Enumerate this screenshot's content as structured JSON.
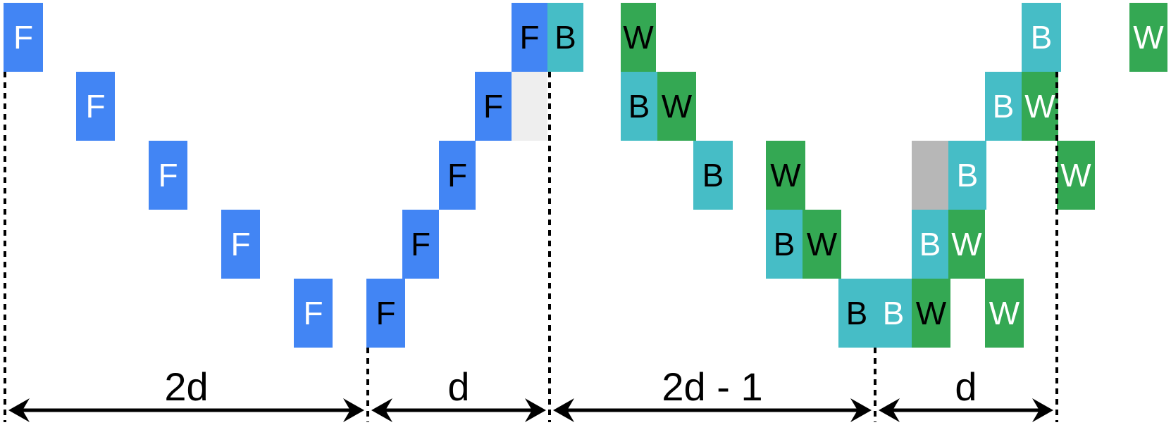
{
  "colors": {
    "forward": "#4285f4",
    "backward": "#46bdc6",
    "weight": "#34a853",
    "idle_light": "#eeeeee",
    "idle_dark": "#b7b7b7",
    "text_white": "#ffffff",
    "text_black": "#000000"
  },
  "cells": [
    {
      "name": "forward-block",
      "label": "F",
      "kind": "forward",
      "text": "white"
    },
    {
      "name": "forward-block",
      "label": "F",
      "kind": "forward",
      "text": "white"
    },
    {
      "name": "forward-block",
      "label": "F",
      "kind": "forward",
      "text": "white"
    },
    {
      "name": "forward-block",
      "label": "F",
      "kind": "forward",
      "text": "white"
    },
    {
      "name": "forward-block",
      "label": "F",
      "kind": "forward",
      "text": "white"
    },
    {
      "name": "forward-block",
      "label": "F",
      "kind": "forward",
      "text": "black"
    },
    {
      "name": "forward-block",
      "label": "F",
      "kind": "forward",
      "text": "black"
    },
    {
      "name": "forward-block",
      "label": "F",
      "kind": "forward",
      "text": "black"
    },
    {
      "name": "forward-block",
      "label": "F",
      "kind": "forward",
      "text": "black"
    },
    {
      "name": "forward-block",
      "label": "F",
      "kind": "forward",
      "text": "black"
    },
    {
      "name": "backward-block",
      "label": "B",
      "kind": "backward",
      "text": "black"
    },
    {
      "name": "idle-block",
      "label": "",
      "kind": "idle_light",
      "text": "black"
    },
    {
      "name": "weight-block",
      "label": "W",
      "kind": "weight",
      "text": "black"
    },
    {
      "name": "backward-block",
      "label": "B",
      "kind": "backward",
      "text": "black"
    },
    {
      "name": "weight-block",
      "label": "W",
      "kind": "weight",
      "text": "black"
    },
    {
      "name": "backward-block",
      "label": "B",
      "kind": "backward",
      "text": "black"
    },
    {
      "name": "weight-block",
      "label": "W",
      "kind": "weight",
      "text": "black"
    },
    {
      "name": "backward-block",
      "label": "B",
      "kind": "backward",
      "text": "black"
    },
    {
      "name": "weight-block",
      "label": "W",
      "kind": "weight",
      "text": "black"
    },
    {
      "name": "backward-block",
      "label": "B",
      "kind": "backward",
      "text": "black"
    },
    {
      "name": "backward-block",
      "label": "B",
      "kind": "backward",
      "text": "white"
    },
    {
      "name": "weight-block",
      "label": "W",
      "kind": "weight",
      "text": "black"
    },
    {
      "name": "backward-block",
      "label": "B",
      "kind": "backward",
      "text": "white"
    },
    {
      "name": "weight-block",
      "label": "W",
      "kind": "weight",
      "text": "white"
    },
    {
      "name": "weight-block",
      "label": "W",
      "kind": "weight",
      "text": "white"
    },
    {
      "name": "idle-block",
      "label": "",
      "kind": "idle_dark",
      "text": "black"
    },
    {
      "name": "backward-block",
      "label": "B",
      "kind": "backward",
      "text": "white"
    },
    {
      "name": "backward-block",
      "label": "B",
      "kind": "backward",
      "text": "white"
    },
    {
      "name": "weight-block",
      "label": "W",
      "kind": "weight",
      "text": "white"
    },
    {
      "name": "weight-block",
      "label": "W",
      "kind": "weight",
      "text": "white"
    },
    {
      "name": "backward-block",
      "label": "B",
      "kind": "backward",
      "text": "white"
    },
    {
      "name": "weight-block",
      "label": "W",
      "kind": "weight",
      "text": "white"
    }
  ],
  "spans": [
    {
      "label": "2d"
    },
    {
      "label": "d"
    },
    {
      "label": "2d - 1"
    },
    {
      "label": "d"
    }
  ]
}
